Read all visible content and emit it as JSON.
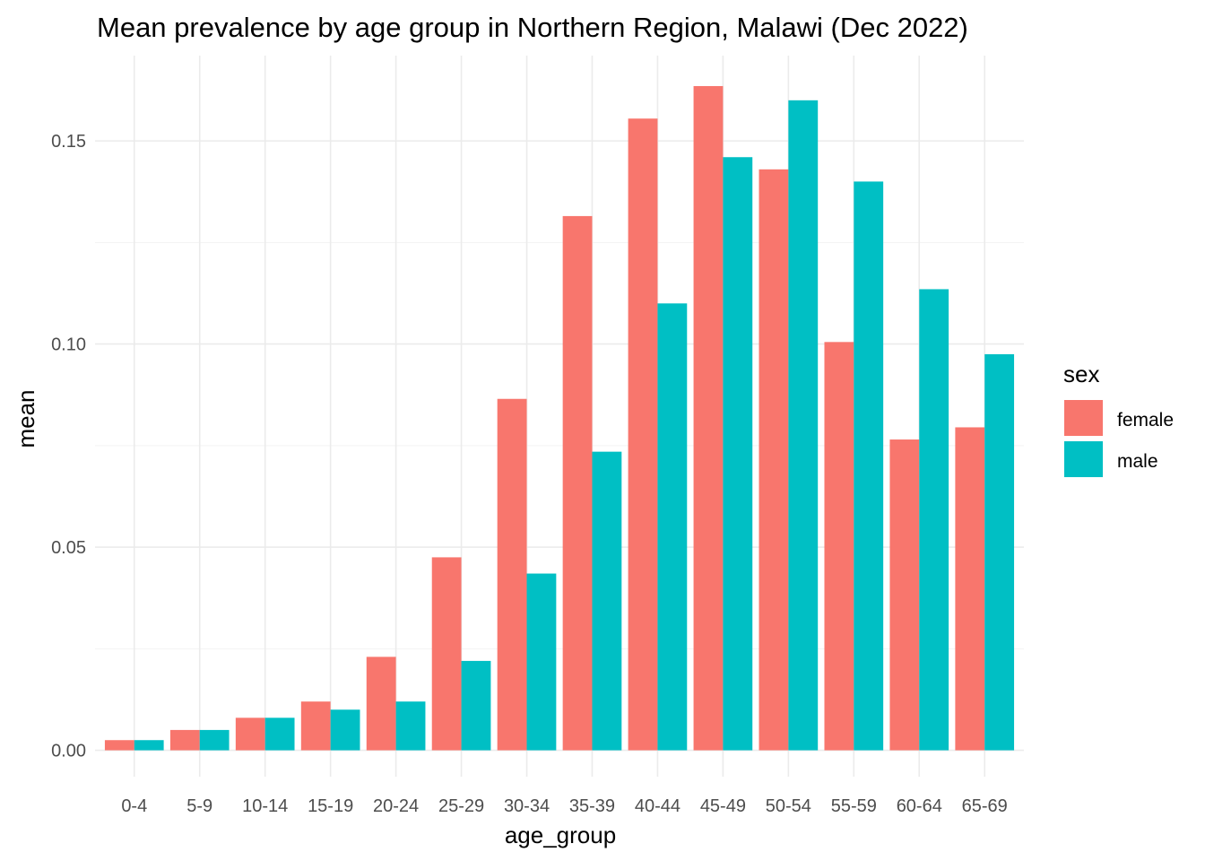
{
  "chart_data": {
    "type": "bar",
    "title": "Mean prevalence by age group in Northern Region, Malawi (Dec 2022)",
    "xlabel": "age_group",
    "ylabel": "mean",
    "categories": [
      "0-4",
      "5-9",
      "10-14",
      "15-19",
      "20-24",
      "25-29",
      "30-34",
      "35-39",
      "40-44",
      "45-49",
      "50-54",
      "55-59",
      "60-64",
      "65-69"
    ],
    "series": [
      {
        "name": "female",
        "color": "#F8766D",
        "values": [
          0.0025,
          0.005,
          0.008,
          0.012,
          0.023,
          0.0475,
          0.0865,
          0.1315,
          0.1555,
          0.1635,
          0.143,
          0.1005,
          0.0765,
          0.0795
        ]
      },
      {
        "name": "male",
        "color": "#00BFC4",
        "values": [
          0.0025,
          0.005,
          0.008,
          0.01,
          0.012,
          0.022,
          0.0435,
          0.0735,
          0.11,
          0.146,
          0.16,
          0.14,
          0.1135,
          0.0975
        ]
      }
    ],
    "ylim": [
      -0.0065,
      0.171
    ],
    "yticks": [
      0.0,
      0.05,
      0.1,
      0.15
    ],
    "ytick_labels": [
      "0.00",
      "0.05",
      "0.10",
      "0.15"
    ],
    "grid": true,
    "legend": {
      "title": "sex",
      "position": "right"
    }
  }
}
